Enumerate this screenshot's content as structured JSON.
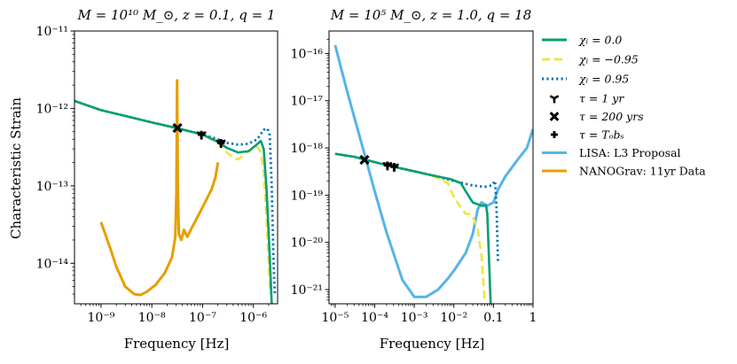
{
  "colors": {
    "chi_0": "#009e73",
    "chi_neg": "#f0e442",
    "chi_pos": "#0072b2",
    "lisa": "#56b4e9",
    "nanograv": "#e69f00",
    "markers": "#000000"
  },
  "legend": {
    "items": [
      {
        "id": "chi0",
        "label": "χ_i = 0.0",
        "style": "solid",
        "color": "#009e73"
      },
      {
        "id": "chineg",
        "label": "χ_i = −0.95",
        "style": "dashed",
        "color": "#f0e442"
      },
      {
        "id": "chipos",
        "label": "χ_i = 0.95",
        "style": "dotted",
        "color": "#0072b2"
      },
      {
        "id": "tau1",
        "label": "τ = 1 yr",
        "marker": "tri"
      },
      {
        "id": "tau200",
        "label": "τ = 200 yrs",
        "marker": "x"
      },
      {
        "id": "tauobs",
        "label": "τ = T_obs",
        "marker": "plus"
      },
      {
        "id": "lisa",
        "label": "LISA: L3 Proposal",
        "style": "solid",
        "color": "#56b4e9"
      },
      {
        "id": "nano",
        "label": "NANOGrav: 11yr Data",
        "style": "solid",
        "color": "#e69f00"
      }
    ]
  },
  "chart_data": [
    {
      "type": "line",
      "title": "M = 10^10 M_⊙, z = 0.1, q = 1",
      "xlabel": "Frequency [Hz]",
      "ylabel": "Characteristic Strain",
      "xscale": "log",
      "yscale": "log",
      "xlim": [
        3e-10,
        3e-06
      ],
      "ylim": [
        3e-15,
        1e-11
      ],
      "xticks": [
        {
          "v": 1e-09,
          "label": "10^-9"
        },
        {
          "v": 1e-08,
          "label": "10^-8"
        },
        {
          "v": 1e-07,
          "label": "10^-7"
        },
        {
          "v": 1e-06,
          "label": "10^-6"
        }
      ],
      "yticks": [
        {
          "v": 1e-14,
          "label": "10^-14"
        },
        {
          "v": 1e-13,
          "label": "10^-13"
        },
        {
          "v": 1e-12,
          "label": "10^-12"
        },
        {
          "v": 1e-11,
          "label": "10^-11"
        }
      ],
      "series": [
        {
          "name": "NANOGrav: 11yr Data",
          "key": "nanograv",
          "style": "solid",
          "points": [
            [
              1e-09,
              3.4e-14
            ],
            [
              1.5e-09,
              1.6e-14
            ],
            [
              2e-09,
              9e-15
            ],
            [
              3e-09,
              5e-15
            ],
            [
              4.5e-09,
              4e-15
            ],
            [
              6e-09,
              3.9e-15
            ],
            [
              8e-09,
              4.3e-15
            ],
            [
              1.2e-08,
              5.3e-15
            ],
            [
              1.8e-08,
              7.5e-15
            ],
            [
              2.5e-08,
              1.2e-14
            ],
            [
              2.9e-08,
              2.2e-14
            ],
            [
              3.05e-08,
              8e-14
            ],
            [
              3.15e-08,
              2.3e-12
            ],
            [
              3.25e-08,
              1.1e-13
            ],
            [
              3.4e-08,
              2.4e-14
            ],
            [
              3.8e-08,
              2e-14
            ],
            [
              4.3e-08,
              2.7e-14
            ],
            [
              5e-08,
              2.2e-14
            ],
            [
              6e-08,
              2.8e-14
            ],
            [
              8e-08,
              4e-14
            ],
            [
              1.1e-07,
              6e-14
            ],
            [
              1.5e-07,
              9e-14
            ],
            [
              1.8e-07,
              1.3e-13
            ],
            [
              2e-07,
              2e-13
            ]
          ]
        },
        {
          "name": "χ_i = 0.95",
          "key": "chi_pos",
          "style": "dotted",
          "points": [
            [
              3e-10,
              1.25e-12
            ],
            [
              1e-09,
              9.5e-13
            ],
            [
              3e-09,
              8e-13
            ],
            [
              1e-08,
              6.6e-13
            ],
            [
              3e-08,
              5.6e-13
            ],
            [
              1e-07,
              4.6e-13
            ],
            [
              2e-07,
              4e-13
            ],
            [
              3e-07,
              3.6e-13
            ],
            [
              5e-07,
              3.4e-13
            ],
            [
              8e-07,
              3.5e-13
            ],
            [
              1.2e-06,
              4e-13
            ],
            [
              1.6e-06,
              5.3e-13
            ],
            [
              1.9e-06,
              5.5e-13
            ],
            [
              2.1e-06,
              4.5e-13
            ],
            [
              2.3e-06,
              1e-13
            ],
            [
              2.5e-06,
              1e-14
            ],
            [
              2.65e-06,
              4e-15
            ]
          ]
        },
        {
          "name": "χ_i = −0.95",
          "key": "chi_neg",
          "style": "dashed",
          "points": [
            [
              3e-10,
              1.25e-12
            ],
            [
              1e-09,
              9.5e-13
            ],
            [
              3e-09,
              8e-13
            ],
            [
              1e-08,
              6.6e-13
            ],
            [
              3e-08,
              5.6e-13
            ],
            [
              1e-07,
              4.6e-13
            ],
            [
              2e-07,
              3.6e-13
            ],
            [
              3e-07,
              2.7e-13
            ],
            [
              4e-07,
              2.3e-13
            ],
            [
              5e-07,
              2.2e-13
            ],
            [
              7e-07,
              2.6e-13
            ],
            [
              1e-06,
              3.1e-13
            ],
            [
              1.2e-06,
              3.2e-13
            ],
            [
              1.4e-06,
              2.7e-13
            ],
            [
              1.6e-06,
              1.5e-13
            ],
            [
              1.8e-06,
              4e-14
            ],
            [
              2e-06,
              1e-14
            ],
            [
              2.15e-06,
              4e-15
            ]
          ]
        },
        {
          "name": "χ_i = 0.0",
          "key": "chi_0",
          "style": "solid",
          "points": [
            [
              3e-10,
              1.25e-12
            ],
            [
              1e-09,
              9.5e-13
            ],
            [
              3e-09,
              8e-13
            ],
            [
              1e-08,
              6.6e-13
            ],
            [
              3e-08,
              5.6e-13
            ],
            [
              1e-07,
              4.6e-13
            ],
            [
              2e-07,
              3.7e-13
            ],
            [
              3e-07,
              3.1e-13
            ],
            [
              5e-07,
              2.7e-13
            ],
            [
              8e-07,
              2.8e-13
            ],
            [
              1.1e-06,
              3.3e-13
            ],
            [
              1.4e-06,
              3.8e-13
            ],
            [
              1.6e-06,
              3e-13
            ],
            [
              1.8e-06,
              1e-13
            ],
            [
              2e-06,
              2.5e-14
            ],
            [
              2.2e-06,
              6e-15
            ],
            [
              2.3e-06,
              3e-15
            ]
          ]
        }
      ],
      "markers": [
        {
          "label": "τ = 200 yrs",
          "marker": "x",
          "x": 3.2e-08,
          "y": 5.6e-13
        },
        {
          "label": "τ = 1 yr",
          "marker": "tri",
          "x": 9.5e-08,
          "y": 4.6e-13
        },
        {
          "label": "τ = T_obs",
          "marker": "plus",
          "x": 9.5e-08,
          "y": 4.6e-13
        },
        {
          "label": "τ = 1 yr",
          "marker": "tri",
          "x": 2.3e-07,
          "y": 3.6e-13
        },
        {
          "label": "τ = T_obs",
          "marker": "plus",
          "x": 2.3e-07,
          "y": 3.6e-13
        }
      ]
    },
    {
      "type": "line",
      "title": "M = 10^5 M_⊙, z = 1.0, q = 18",
      "xlabel": "Frequency [Hz]",
      "ylabel": "",
      "xscale": "log",
      "yscale": "log",
      "xlim": [
        7e-06,
        1
      ],
      "ylim": [
        5e-22,
        3e-16
      ],
      "xticks": [
        {
          "v": 1e-05,
          "label": "10^-5"
        },
        {
          "v": 0.0001,
          "label": "10^-4"
        },
        {
          "v": 0.001,
          "label": "10^-3"
        },
        {
          "v": 0.01,
          "label": "10^-2"
        },
        {
          "v": 0.1,
          "label": "0.1"
        },
        {
          "v": 1,
          "label": "1"
        }
      ],
      "yticks": [
        {
          "v": 1e-21,
          "label": "10^-21"
        },
        {
          "v": 1e-20,
          "label": "10^-20"
        },
        {
          "v": 1e-19,
          "label": "10^-19"
        },
        {
          "v": 1e-18,
          "label": "10^-18"
        },
        {
          "v": 1e-17,
          "label": "10^-17"
        },
        {
          "v": 1e-16,
          "label": "10^-16"
        }
      ],
      "series": [
        {
          "name": "LISA: L3 Proposal",
          "key": "lisa",
          "style": "solid",
          "points": [
            [
              1e-05,
              1.5e-16
            ],
            [
              2e-05,
              1.6e-17
            ],
            [
              5e-05,
              1e-18
            ],
            [
              0.0001,
              1.2e-19
            ],
            [
              0.0002,
              1.6e-20
            ],
            [
              0.0005,
              1.6e-21
            ],
            [
              0.001,
              7e-22
            ],
            [
              0.002,
              7e-22
            ],
            [
              0.004,
              1e-21
            ],
            [
              0.007,
              1.7e-21
            ],
            [
              0.01,
              2.5e-21
            ],
            [
              0.02,
              6e-21
            ],
            [
              0.03,
              1.5e-20
            ],
            [
              0.04,
              5e-20
            ],
            [
              0.05,
              7e-20
            ],
            [
              0.07,
              6e-20
            ],
            [
              0.1,
              7e-20
            ],
            [
              0.13,
              1.3e-19
            ],
            [
              0.2,
              2.5e-19
            ],
            [
              0.4,
              5.5e-19
            ],
            [
              0.7,
              1e-18
            ],
            [
              1,
              2.5e-18
            ]
          ]
        },
        {
          "name": "χ_i = 0.95",
          "key": "chi_pos",
          "style": "dotted",
          "points": [
            [
              1e-05,
              7.5e-19
            ],
            [
              3e-05,
              6.5e-19
            ],
            [
              0.0001,
              5e-19
            ],
            [
              0.0003,
              4e-19
            ],
            [
              0.001,
              3.2e-19
            ],
            [
              0.003,
              2.6e-19
            ],
            [
              0.01,
              2e-19
            ],
            [
              0.03,
              1.6e-19
            ],
            [
              0.06,
              1.5e-19
            ],
            [
              0.09,
              1.6e-19
            ],
            [
              0.11,
              2e-19
            ],
            [
              0.12,
              5e-20
            ],
            [
              0.13,
              4e-21
            ]
          ]
        },
        {
          "name": "χ_i = −0.95",
          "key": "chi_neg",
          "style": "dashed",
          "points": [
            [
              1e-05,
              7.5e-19
            ],
            [
              3e-05,
              6.5e-19
            ],
            [
              0.0001,
              5e-19
            ],
            [
              0.0003,
              4e-19
            ],
            [
              0.001,
              3.2e-19
            ],
            [
              0.003,
              2.5e-19
            ],
            [
              0.007,
              1.8e-19
            ],
            [
              0.01,
              9e-20
            ],
            [
              0.015,
              5.5e-20
            ],
            [
              0.02,
              4e-20
            ],
            [
              0.025,
              4e-20
            ],
            [
              0.03,
              3.5e-20
            ],
            [
              0.04,
              2e-20
            ],
            [
              0.05,
              5e-21
            ],
            [
              0.06,
              6e-22
            ]
          ]
        },
        {
          "name": "χ_i = 0.0",
          "key": "chi_0",
          "style": "solid",
          "points": [
            [
              1e-05,
              7.5e-19
            ],
            [
              3e-05,
              6.5e-19
            ],
            [
              0.0001,
              5e-19
            ],
            [
              0.0003,
              4e-19
            ],
            [
              0.001,
              3.2e-19
            ],
            [
              0.003,
              2.6e-19
            ],
            [
              0.008,
              2.2e-19
            ],
            [
              0.015,
              1.8e-19
            ],
            [
              0.02,
              1.2e-19
            ],
            [
              0.03,
              7e-20
            ],
            [
              0.05,
              6e-20
            ],
            [
              0.065,
              6e-20
            ],
            [
              0.07,
              4e-20
            ],
            [
              0.08,
              2e-21
            ],
            [
              0.085,
              5e-22
            ]
          ]
        }
      ],
      "markers": [
        {
          "label": "τ = 200 yrs",
          "marker": "x",
          "x": 5.5e-05,
          "y": 5.6e-19
        },
        {
          "label": "τ = 1 yr",
          "marker": "tri",
          "x": 0.00021,
          "y": 4.3e-19
        },
        {
          "label": "τ = T_obs",
          "marker": "plus",
          "x": 0.00021,
          "y": 4.3e-19
        },
        {
          "label": "τ = 1 yr",
          "marker": "tri",
          "x": 0.00031,
          "y": 4e-19
        },
        {
          "label": "τ = T_obs",
          "marker": "plus",
          "x": 0.00031,
          "y": 4e-19
        }
      ]
    }
  ]
}
